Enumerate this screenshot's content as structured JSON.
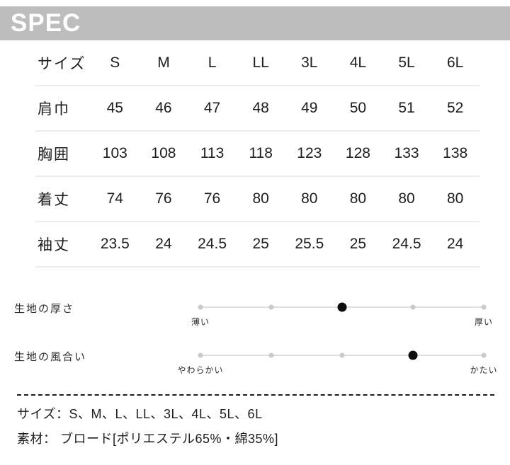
{
  "header": {
    "title": "SPEC",
    "bar_color": "#bdbdbd",
    "text_color": "#ffffff"
  },
  "size_table": {
    "label_header": "サイズ",
    "columns": [
      "S",
      "M",
      "L",
      "LL",
      "3L",
      "4L",
      "5L",
      "6L"
    ],
    "rows": [
      {
        "label": "肩巾",
        "values": [
          "45",
          "46",
          "47",
          "48",
          "49",
          "50",
          "51",
          "52"
        ]
      },
      {
        "label": "胸囲",
        "values": [
          "103",
          "108",
          "113",
          "118",
          "123",
          "128",
          "133",
          "138"
        ]
      },
      {
        "label": "着丈",
        "values": [
          "74",
          "76",
          "76",
          "80",
          "80",
          "80",
          "80",
          "80"
        ]
      },
      {
        "label": "袖丈",
        "values": [
          "23.5",
          "24",
          "24.5",
          "25",
          "25.5",
          "25",
          "24.5",
          "24"
        ]
      }
    ]
  },
  "scales": [
    {
      "label": "生地の厚さ",
      "min_label": "薄い",
      "max_label": "厚い",
      "steps": 5,
      "value": 3,
      "active_dot_color": "#0d0d0d",
      "inactive_dot_color": "#c9c9c9"
    },
    {
      "label": "生地の風合い",
      "min_label": "やわらかい",
      "max_label": "かたい",
      "steps": 5,
      "value": 4,
      "active_dot_color": "#0d0d0d",
      "inactive_dot_color": "#c9c9c9"
    }
  ],
  "notes": [
    "サイズ：S、M、L、LL、3L、4L、5L、6L",
    "素材： ブロード[ポリエステル65%・綿35%]"
  ]
}
